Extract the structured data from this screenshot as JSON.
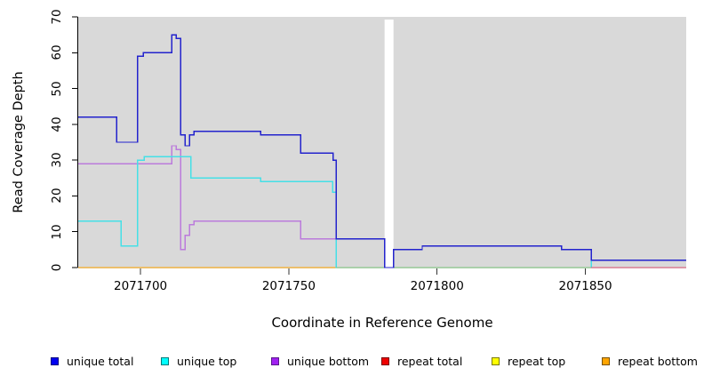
{
  "figure": {
    "xlabel": "Coordinate in Reference Genome",
    "ylabel": "Read Coverage Depth"
  },
  "chart_data": {
    "type": "line",
    "step": true,
    "title": "",
    "xlabel": "Coordinate in Reference Genome",
    "ylabel": "Read Coverage Depth",
    "xlim": [
      2071679,
      2071884
    ],
    "ylim": [
      0,
      70
    ],
    "x_ticks": [
      2071700,
      2071750,
      2071800,
      2071850
    ],
    "y_ticks": [
      0,
      10,
      20,
      30,
      40,
      50,
      60,
      70
    ],
    "grid": false,
    "plot_bg_color": "#d9d9d9",
    "coverage_gap": {
      "x_start": 2071782.3,
      "x_end": 2071785.3
    },
    "legend_position": "bottom",
    "series": [
      {
        "name": "unique total",
        "line_color": "#2323cd",
        "swatch_fill": "#0000f0",
        "swatch_border": "#000080",
        "points": [
          [
            2071679,
            42
          ],
          [
            2071692,
            35
          ],
          [
            2071699,
            59
          ],
          [
            2071701,
            60
          ],
          [
            2071710.5,
            65
          ],
          [
            2071712,
            64
          ],
          [
            2071713.5,
            37
          ],
          [
            2071715,
            34
          ],
          [
            2071716.5,
            37
          ],
          [
            2071718,
            38
          ],
          [
            2071740.5,
            37
          ],
          [
            2071754,
            32
          ],
          [
            2071765,
            30
          ],
          [
            2071766,
            8
          ],
          [
            2071782.3,
            0
          ],
          [
            2071785.3,
            5
          ],
          [
            2071795,
            6
          ],
          [
            2071842,
            5
          ],
          [
            2071852,
            2
          ]
        ]
      },
      {
        "name": "unique top",
        "line_color": "#45e0e6",
        "swatch_fill": "#00ffff",
        "swatch_border": "#007a7a",
        "points": [
          [
            2071679,
            13
          ],
          [
            2071693.5,
            6
          ],
          [
            2071699,
            30
          ],
          [
            2071701.3,
            31
          ],
          [
            2071717,
            25
          ],
          [
            2071740.5,
            24
          ],
          [
            2071764.8,
            21
          ],
          [
            2071766,
            0
          ],
          [
            2071852,
            2
          ]
        ]
      },
      {
        "name": "unique bottom",
        "line_color": "#bb7bdc",
        "swatch_fill": "#a020f0",
        "swatch_border": "#5a1a8b",
        "points": [
          [
            2071679,
            29
          ],
          [
            2071710.5,
            34
          ],
          [
            2071712,
            33
          ],
          [
            2071713.5,
            5
          ],
          [
            2071715,
            9
          ],
          [
            2071716.5,
            12
          ],
          [
            2071718,
            13
          ],
          [
            2071754,
            8
          ],
          [
            2071782.3,
            0
          ],
          [
            2071785.3,
            5
          ],
          [
            2071795,
            6
          ],
          [
            2071842,
            5
          ],
          [
            2071852,
            0
          ]
        ]
      },
      {
        "name": "repeat total",
        "line_color": "#dd1111",
        "swatch_fill": "#ee0000",
        "swatch_border": "#7a0000",
        "points": [
          [
            2071679,
            0
          ]
        ]
      },
      {
        "name": "repeat top",
        "line_color": "#ffff00",
        "swatch_fill": "#ffff00",
        "swatch_border": "#7a7a00",
        "points": [
          [
            2071679,
            0
          ]
        ]
      },
      {
        "name": "repeat bottom",
        "line_color": "#ffa500",
        "swatch_fill": "#ffa500",
        "swatch_border": "#7a5200",
        "points": [
          [
            2071679,
            0
          ]
        ]
      }
    ],
    "baseline_overlap_segments": [
      {
        "x_start": 2071766,
        "x_end": 2071852,
        "y": 0,
        "color": "#7cc87c"
      },
      {
        "x_start": 2071852,
        "x_end": 2071884,
        "y": 0,
        "color": "#e05878"
      }
    ]
  }
}
